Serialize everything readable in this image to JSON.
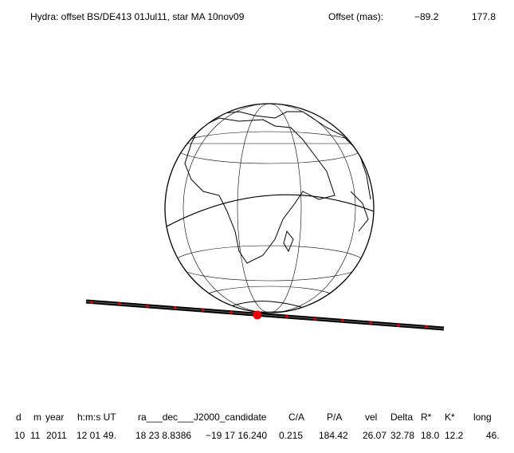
{
  "header": {
    "title": "Hydra: offset BS/DE413 01Jul11, star MA 10nov09",
    "offset_label": "Offset (mas):",
    "offset_values": [
      "−89.2",
      "177.8"
    ]
  },
  "table": {
    "headers": [
      "d",
      "m",
      "year",
      "h:m:s UT",
      "ra___dec___J2000_candidate",
      "C/A",
      "P/A",
      "vel",
      "Delta",
      "R*",
      "K*",
      "long"
    ],
    "rows": [
      [
        "10",
        "11",
        "2011",
        "12 01 49.",
        "18 23  8.8386",
        "−19 17  16.240",
        "0.215",
        "184.42",
        "26.07",
        "32.78",
        "18.0",
        "12.2",
        "46."
      ]
    ]
  }
}
